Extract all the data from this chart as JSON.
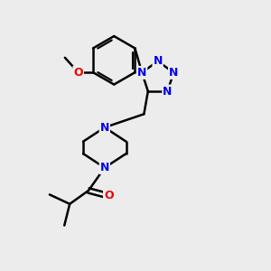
{
  "background_color": "#ececec",
  "bond_color": "#000000",
  "bond_width": 1.8,
  "atom_colors": {
    "N": "#0000ee",
    "O": "#ee0000",
    "C": "#000000"
  },
  "figsize": [
    3.0,
    3.0
  ],
  "dpi": 100
}
